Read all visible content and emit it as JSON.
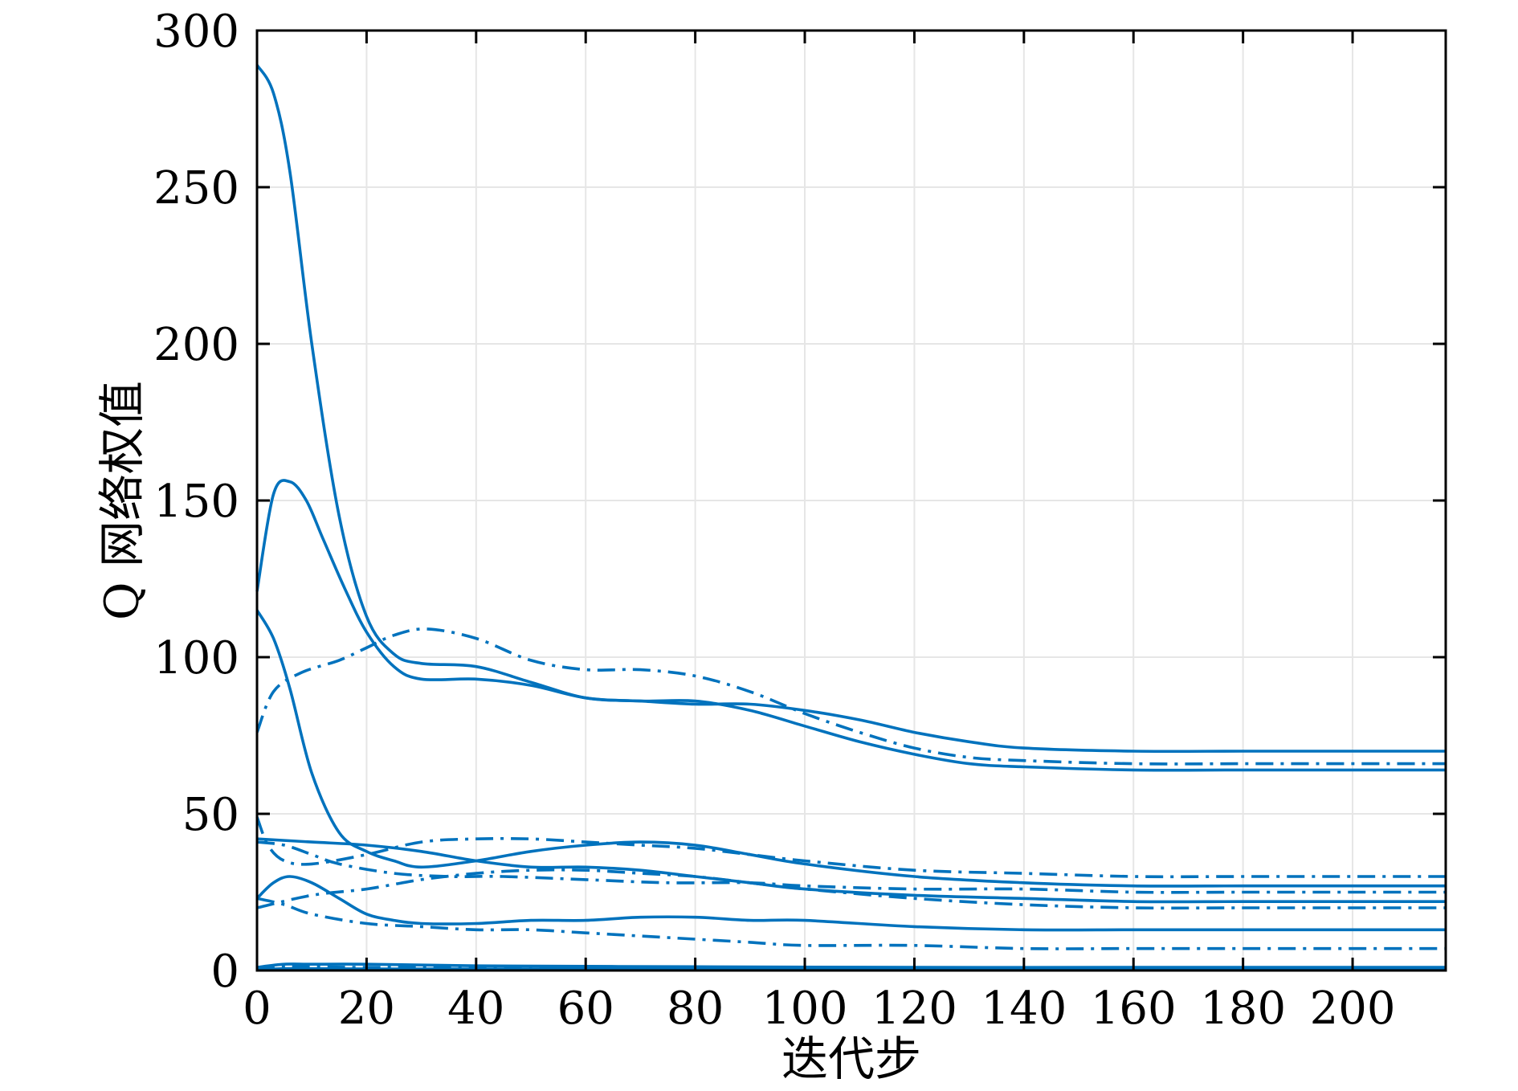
{
  "chart_data": {
    "type": "line",
    "xlabel": "迭代步",
    "ylabel": "Q 网络权值",
    "xlim": [
      0,
      217
    ],
    "ylim": [
      0,
      300
    ],
    "xticks": [
      0,
      20,
      40,
      60,
      80,
      100,
      120,
      140,
      160,
      180,
      200
    ],
    "yticks": [
      0,
      50,
      100,
      150,
      200,
      250,
      300
    ],
    "grid": true,
    "legend": "none",
    "colors": {
      "line": "#0072BD",
      "grid": "#e6e6e6",
      "axes": "#000000"
    },
    "series": [
      {
        "style": "solid",
        "x": [
          0,
          3,
          6,
          10,
          15,
          20,
          25,
          30,
          40,
          50,
          60,
          70,
          80,
          90,
          100,
          110,
          120,
          130,
          140,
          160,
          180,
          200,
          217
        ],
        "y": [
          289,
          280,
          255,
          200,
          145,
          113,
          101,
          98,
          97,
          92,
          87,
          86,
          85,
          85,
          83,
          80,
          76,
          73,
          71,
          70,
          70,
          70,
          70
        ]
      },
      {
        "style": "solid",
        "x": [
          0,
          3,
          6,
          9,
          12,
          16,
          20,
          25,
          30,
          40,
          50,
          60,
          70,
          80,
          90,
          100,
          110,
          120,
          130,
          140,
          160,
          180,
          200,
          217
        ],
        "y": [
          121,
          152,
          156,
          150,
          138,
          122,
          108,
          97,
          93,
          93,
          91,
          87,
          86,
          86,
          83,
          78,
          73,
          69,
          66,
          65,
          64,
          64,
          64,
          64
        ]
      },
      {
        "style": "dashdot",
        "x": [
          0,
          3,
          8,
          15,
          20,
          25,
          31,
          40,
          50,
          60,
          70,
          80,
          90,
          100,
          110,
          120,
          130,
          140,
          160,
          180,
          200,
          217
        ],
        "y": [
          76,
          89,
          95,
          99,
          103,
          107,
          109,
          106,
          99,
          96,
          96,
          94,
          89,
          82,
          76,
          71,
          68,
          67,
          66,
          66,
          66,
          66
        ]
      },
      {
        "style": "solid",
        "x": [
          0,
          3,
          6,
          10,
          15,
          20,
          25,
          30,
          40,
          50,
          60,
          70,
          80,
          90,
          100,
          120,
          140,
          160,
          180,
          200,
          217
        ],
        "y": [
          115,
          106,
          90,
          63,
          44,
          38,
          35,
          33,
          35,
          38,
          40,
          41,
          40,
          37,
          34,
          30,
          28,
          27,
          27,
          27,
          27
        ]
      },
      {
        "style": "solid",
        "x": [
          0,
          10,
          20,
          30,
          40,
          50,
          60,
          70,
          80,
          90,
          100,
          120,
          140,
          160,
          180,
          200,
          217
        ],
        "y": [
          42,
          41,
          40,
          38,
          35,
          33,
          33,
          32,
          30,
          28,
          26,
          24,
          23,
          22,
          22,
          22,
          22
        ]
      },
      {
        "style": "dashdot",
        "x": [
          0,
          2,
          5,
          10,
          20,
          30,
          40,
          50,
          60,
          70,
          80,
          90,
          100,
          120,
          140,
          160,
          180,
          200,
          217
        ],
        "y": [
          49,
          40,
          35,
          34,
          37,
          41,
          42,
          42,
          41,
          40,
          39,
          37,
          35,
          32,
          31,
          30,
          30,
          30,
          30
        ]
      },
      {
        "style": "dashdot",
        "x": [
          0,
          5,
          10,
          15,
          25,
          35,
          45,
          60,
          75,
          90,
          100,
          120,
          140,
          160,
          180,
          200,
          217
        ],
        "y": [
          41,
          40,
          37,
          34,
          31,
          30,
          30,
          29,
          28,
          28,
          27,
          26,
          26,
          25,
          25,
          25,
          25
        ]
      },
      {
        "style": "solid",
        "x": [
          0,
          3,
          6,
          10,
          15,
          20,
          25,
          30,
          40,
          50,
          60,
          70,
          80,
          90,
          100,
          120,
          140,
          160,
          180,
          200,
          217
        ],
        "y": [
          23,
          28,
          30,
          28,
          23,
          18,
          16,
          15,
          15,
          16,
          16,
          17,
          17,
          16,
          16,
          14,
          13,
          13,
          13,
          13,
          13
        ]
      },
      {
        "style": "dashdot",
        "x": [
          0,
          10,
          20,
          30,
          40,
          50,
          60,
          70,
          80,
          90,
          100,
          120,
          140,
          160,
          180,
          200,
          217
        ],
        "y": [
          20,
          24,
          26,
          29,
          31,
          32,
          32,
          31,
          30,
          28,
          26,
          23,
          21,
          20,
          20,
          20,
          20
        ]
      },
      {
        "style": "dashdot",
        "x": [
          0,
          5,
          10,
          20,
          30,
          40,
          50,
          60,
          70,
          80,
          90,
          100,
          120,
          140,
          160,
          180,
          200,
          217
        ],
        "y": [
          23,
          21,
          18,
          15,
          14,
          13,
          13,
          12,
          11,
          10,
          9,
          8,
          8,
          7,
          7,
          7,
          7,
          7
        ]
      },
      {
        "style": "solid",
        "x": [
          0,
          5,
          10,
          20,
          40,
          80,
          120,
          160,
          217
        ],
        "y": [
          1,
          2,
          2,
          2,
          1.5,
          1.2,
          1,
          1,
          1
        ]
      },
      {
        "style": "dashdot",
        "x": [
          0,
          5,
          10,
          20,
          40,
          80,
          120,
          160,
          217
        ],
        "y": [
          0.5,
          1.5,
          1.2,
          1,
          1,
          0.8,
          0.8,
          0.8,
          0.8
        ]
      },
      {
        "style": "solid",
        "x": [
          0,
          5,
          10,
          20,
          40,
          80,
          120,
          160,
          217
        ],
        "y": [
          0.3,
          0.6,
          0.6,
          0.5,
          0.5,
          0.4,
          0.4,
          0.4,
          0.4
        ]
      },
      {
        "style": "solid",
        "x": [
          0,
          217
        ],
        "y": [
          0.1,
          0.1
        ]
      }
    ]
  }
}
